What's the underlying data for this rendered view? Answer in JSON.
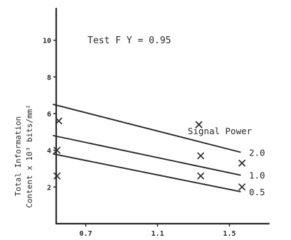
{
  "chart_data": {
    "type": "scatter",
    "title": "",
    "annotation": "Test F  Y  =  0.95",
    "ylabel_line1": "Total Information",
    "ylabel_line2": "Content x 10³ bits/mm²",
    "xlabel": "",
    "xlim": [
      0.5,
      1.72
    ],
    "ylim": [
      0,
      12
    ],
    "x_ticks": [
      0.7,
      1.1,
      1.5
    ],
    "x_tick_labels": [
      "0.7",
      "1.1",
      "1.5"
    ],
    "y_ticks": [
      2,
      4,
      6,
      8,
      10
    ],
    "y_tick_labels": [
      "2",
      "4",
      "6",
      "8",
      "10"
    ],
    "legend_title": "Signal Power",
    "series": [
      {
        "name": "2.0",
        "line": {
          "x": [
            0.52,
            1.56
          ],
          "y": [
            6.5,
            3.9
          ]
        },
        "points": [
          {
            "x": 0.55,
            "y": 5.6
          },
          {
            "x": 1.33,
            "y": 5.4
          }
        ]
      },
      {
        "name": "1.0",
        "line": {
          "x": [
            0.52,
            1.56
          ],
          "y": [
            4.8,
            2.65
          ]
        },
        "points": [
          {
            "x": 0.54,
            "y": 4.0
          },
          {
            "x": 1.34,
            "y": 3.7
          },
          {
            "x": 1.57,
            "y": 3.3
          }
        ]
      },
      {
        "name": "0.5",
        "line": {
          "x": [
            0.52,
            1.56
          ],
          "y": [
            3.8,
            1.75
          ]
        },
        "points": [
          {
            "x": 0.54,
            "y": 2.6
          },
          {
            "x": 1.34,
            "y": 2.6
          },
          {
            "x": 1.57,
            "y": 2.0
          }
        ]
      }
    ]
  }
}
